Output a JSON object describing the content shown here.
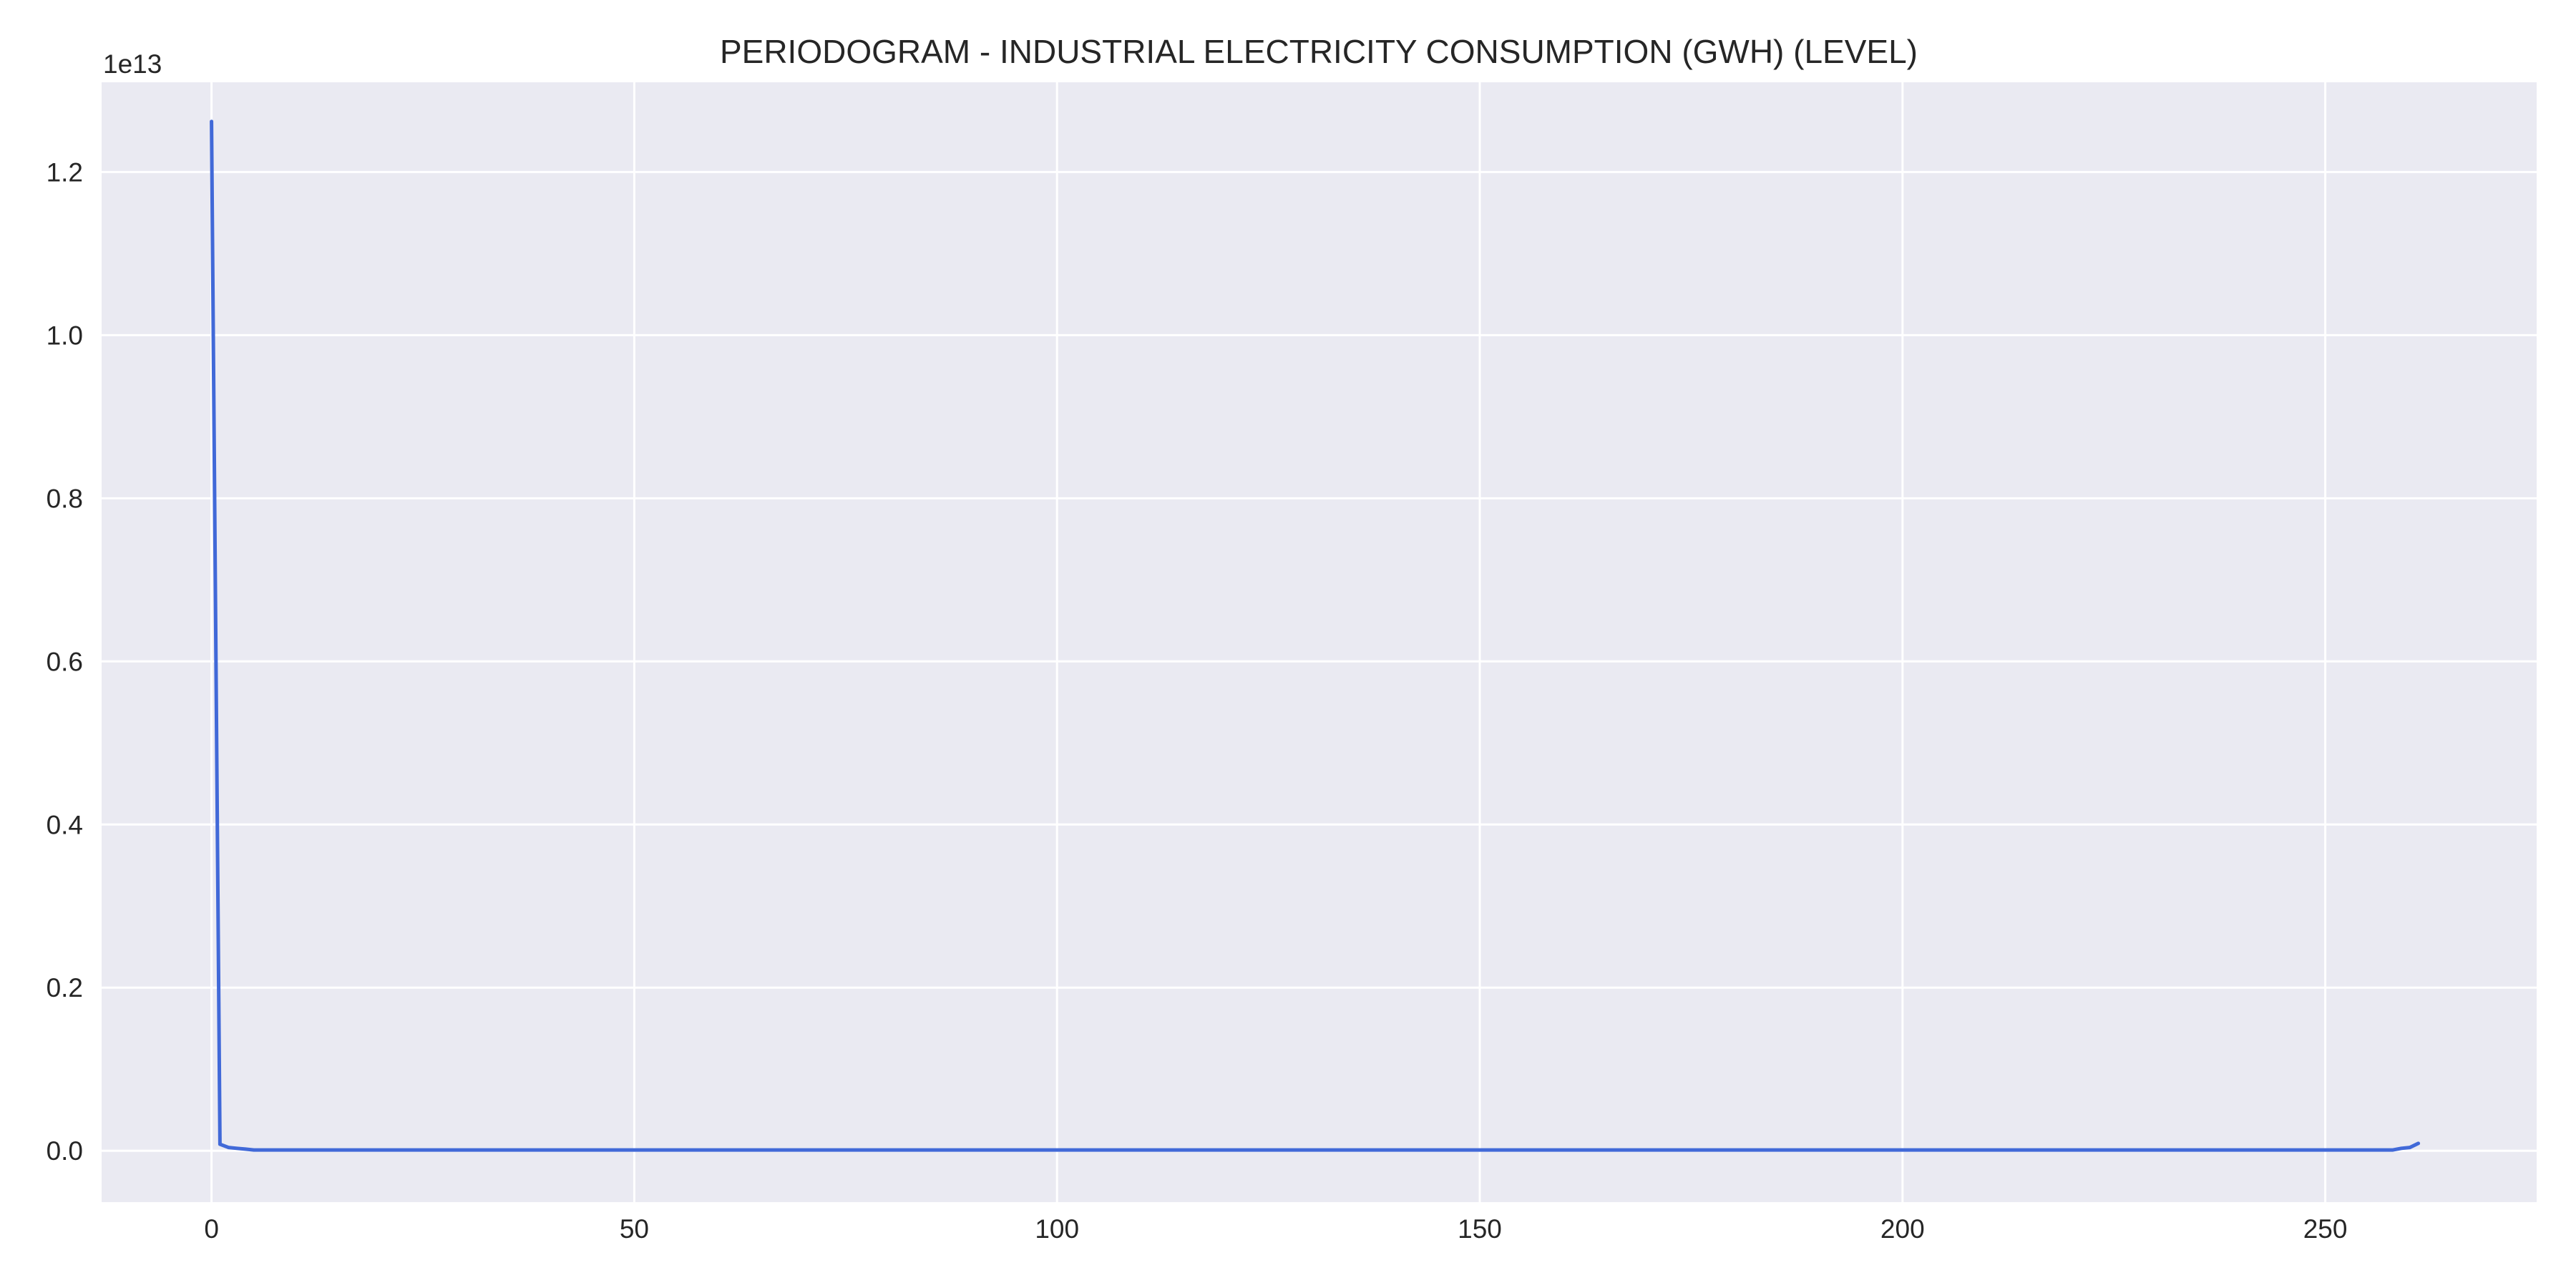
{
  "chart_data": {
    "type": "line",
    "title": "PERIODOGRAM - INDUSTRIAL ELECTRICITY CONSUMPTION (GWH) (LEVEL)",
    "xlabel": "",
    "ylabel": "",
    "y_offset_label": "1e13",
    "xlim": [
      -13,
      275
    ],
    "ylim": [
      -0.063,
      1.31
    ],
    "xticks": [
      0,
      50,
      100,
      150,
      200,
      250
    ],
    "xtick_labels": [
      "0",
      "50",
      "100",
      "150",
      "200",
      "250"
    ],
    "yticks": [
      0.0,
      0.2,
      0.4,
      0.6,
      0.8,
      1.0,
      1.2
    ],
    "ytick_labels": [
      "0.0",
      "0.2",
      "0.4",
      "0.6",
      "0.8",
      "1.0",
      "1.2"
    ],
    "grid": true,
    "colors": {
      "plot_background": "#eaeaf2",
      "grid": "#ffffff",
      "line": "#4169d8"
    },
    "series": [
      {
        "x": [
          0,
          1,
          2,
          3,
          4,
          5,
          6,
          8,
          10,
          20,
          40,
          60,
          80,
          100,
          120,
          140,
          160,
          180,
          200,
          220,
          240,
          255,
          258,
          259,
          260,
          261
        ],
        "values": [
          1.262,
          0.008,
          0.004,
          0.003,
          0.002,
          0.001,
          0.001,
          0.001,
          0.001,
          0.001,
          0.001,
          0.001,
          0.001,
          0.001,
          0.001,
          0.001,
          0.001,
          0.001,
          0.001,
          0.001,
          0.001,
          0.001,
          0.001,
          0.003,
          0.004,
          0.009
        ]
      }
    ]
  }
}
